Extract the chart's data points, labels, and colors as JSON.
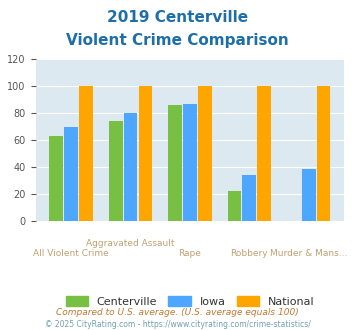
{
  "title_line1": "2019 Centerville",
  "title_line2": "Violent Crime Comparison",
  "series": {
    "Centerville": [
      63,
      74,
      86,
      22,
      0
    ],
    "Iowa": [
      70,
      80,
      87,
      34,
      39
    ],
    "National": [
      100,
      100,
      100,
      100,
      100
    ]
  },
  "colors": {
    "Centerville": "#77C043",
    "Iowa": "#4DA6FF",
    "National": "#FFA500"
  },
  "ylim": [
    0,
    120
  ],
  "yticks": [
    0,
    20,
    40,
    60,
    80,
    100,
    120
  ],
  "background_color": "#DDE9F0",
  "title_color": "#1E6FA8",
  "xlabel_color": "#C0A070",
  "footer1": "Compared to U.S. average. (U.S. average equals 100)",
  "footer2": "© 2025 CityRating.com - https://www.cityrating.com/crime-statistics/",
  "footer1_color": "#C07830",
  "footer2_color": "#70A0B0",
  "label_top": [
    "",
    "Aggravated Assault",
    "",
    "",
    ""
  ],
  "label_bot": [
    "All Violent Crime",
    "Rape",
    "",
    "Robbery",
    "Murder & Mans..."
  ]
}
